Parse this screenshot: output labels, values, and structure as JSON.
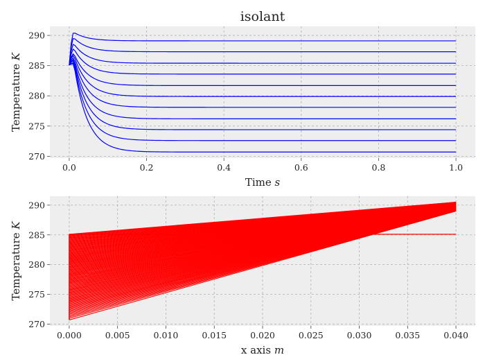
{
  "chart_data": [
    {
      "type": "line",
      "title": "isolant",
      "xlabel": "Time ",
      "xlabel_unit": "s",
      "ylabel": "Temperature ",
      "ylabel_unit": "K",
      "xlim": [
        -0.05,
        1.05
      ],
      "ylim": [
        269.7,
        291.5
      ],
      "xticks": [
        0.0,
        0.2,
        0.4,
        0.6,
        0.8,
        1.0
      ],
      "xtick_labels": [
        "0.0",
        "0.2",
        "0.4",
        "0.6",
        "0.8",
        "1.0"
      ],
      "yticks": [
        270,
        275,
        280,
        285,
        290
      ],
      "ytick_labels": [
        "270",
        "275",
        "280",
        "285",
        "290"
      ],
      "grid": true,
      "line_color": "#0000ff",
      "initial_value": 285.1,
      "series_final_values": [
        289.1,
        287.3,
        285.4,
        283.6,
        281.7,
        279.9,
        278.1,
        276.2,
        274.4,
        272.6,
        270.7
      ],
      "series_peak_values": [
        290.5,
        289.6,
        288.6,
        287.8,
        287.0,
        286.7,
        286.3,
        286.0,
        285.8,
        285.5,
        285.3
      ]
    },
    {
      "type": "line",
      "xlabel": "x axis ",
      "xlabel_unit": "m",
      "ylabel": "Temperature ",
      "ylabel_unit": "K",
      "xlim": [
        -0.002,
        0.042
      ],
      "ylim": [
        269.7,
        291.5
      ],
      "xticks": [
        0.0,
        0.005,
        0.01,
        0.015,
        0.02,
        0.025,
        0.03,
        0.035,
        0.04
      ],
      "xtick_labels": [
        "0.000",
        "0.005",
        "0.010",
        "0.015",
        "0.020",
        "0.025",
        "0.030",
        "0.035",
        "0.040"
      ],
      "yticks": [
        270,
        275,
        280,
        285,
        290
      ],
      "ytick_labels": [
        "270",
        "275",
        "280",
        "285",
        "290"
      ],
      "grid": true,
      "line_color": "#ff0000",
      "initial_profile": {
        "x": [
          0.0,
          0.04
        ],
        "y": [
          285.1,
          285.1
        ]
      },
      "profile_left_range": [
        270.7,
        285.1
      ],
      "profile_right_range": [
        289.0,
        290.5
      ],
      "profile_count": 100
    }
  ]
}
